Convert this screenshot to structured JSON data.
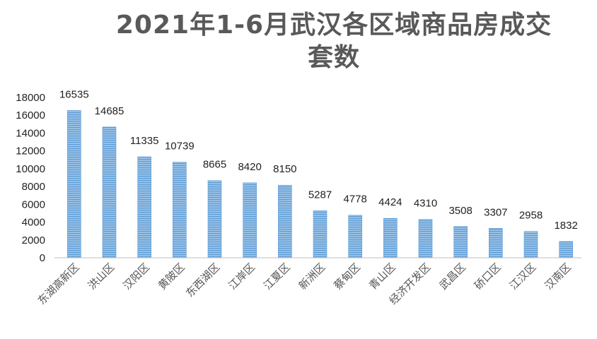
{
  "chart_data": {
    "type": "bar",
    "title_lines": [
      "2021年1-6月武汉各区域商品房成交",
      "套数"
    ],
    "xlabel": "",
    "ylabel": "",
    "ylim": [
      0,
      18000
    ],
    "yticks": [
      0,
      2000,
      4000,
      6000,
      8000,
      10000,
      12000,
      14000,
      16000,
      18000
    ],
    "grid": false,
    "legend": "none",
    "categories": [
      "东湖高新区",
      "洪山区",
      "汉阳区",
      "黄陂区",
      "东西湖区",
      "江岸区",
      "江夏区",
      "新洲区",
      "蔡甸区",
      "青山区",
      "经济开发区",
      "武昌区",
      "硚口区",
      "江汉区",
      "汉南区"
    ],
    "values": [
      16535,
      14685,
      11335,
      10739,
      8665,
      8420,
      8150,
      5287,
      4778,
      4424,
      4310,
      3508,
      3307,
      2958,
      1832
    ],
    "bar_color": "#9dc3e6",
    "bar_stripe_color": "#5b9bd5"
  }
}
